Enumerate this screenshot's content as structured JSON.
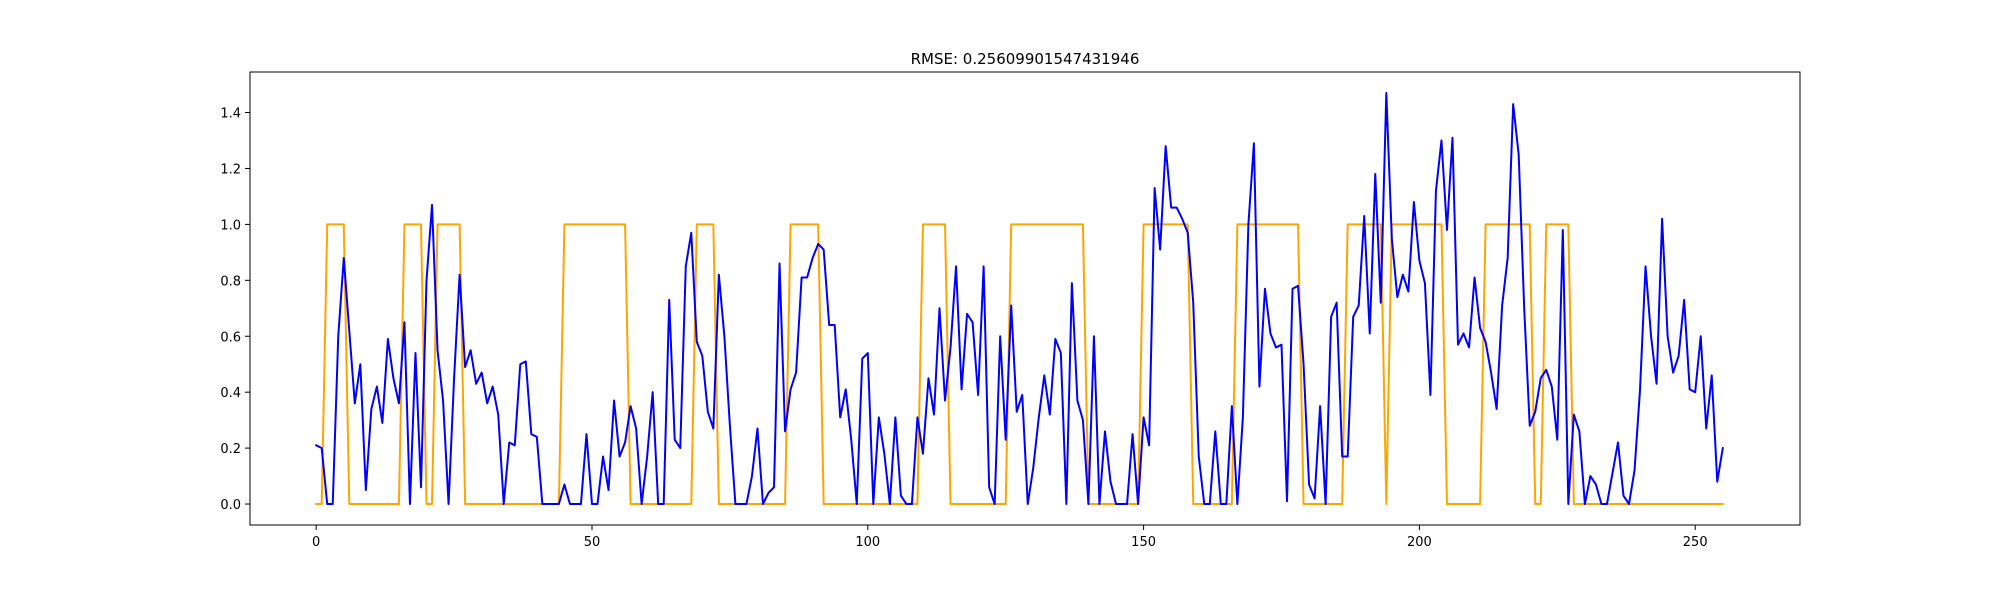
{
  "chart_data": {
    "type": "line",
    "title": "RMSE: 0.25609901547431946",
    "xlabel": "",
    "ylabel": "",
    "xlim": [
      -12,
      269
    ],
    "ylim": [
      -0.075,
      1.545
    ],
    "xticks": [
      0,
      50,
      100,
      150,
      200,
      250
    ],
    "yticks": [
      0.0,
      0.2,
      0.4,
      0.6,
      0.8,
      1.0,
      1.2,
      1.4
    ],
    "xtick_labels": [
      "0",
      "50",
      "100",
      "150",
      "200",
      "250"
    ],
    "ytick_labels": [
      "0.0",
      "0.2",
      "0.4",
      "0.6",
      "0.8",
      "1.0",
      "1.2",
      "1.4"
    ],
    "grid": false,
    "legend": "none",
    "colors": {
      "predicted": "#0000ff",
      "target": "#ffa500"
    },
    "series": [
      {
        "color": "#ffa500",
        "x": [
          0,
          1,
          2,
          5,
          6,
          15,
          16,
          19,
          20,
          21,
          22,
          26,
          27,
          44,
          45,
          56,
          57,
          68,
          69,
          72,
          73,
          85,
          86,
          91,
          92,
          109,
          110,
          114,
          115,
          125,
          126,
          139,
          140,
          149,
          150,
          158,
          159,
          166,
          167,
          178,
          179,
          186,
          187,
          193,
          194,
          195,
          204,
          205,
          211,
          212,
          220,
          221,
          222,
          223,
          227,
          228,
          255
        ],
        "y": [
          0,
          0,
          1,
          1,
          0,
          0,
          1,
          1,
          0,
          0,
          1,
          1,
          0,
          0,
          1,
          1,
          0,
          0,
          1,
          1,
          0,
          0,
          1,
          1,
          0,
          0,
          1,
          1,
          0,
          0,
          1,
          1,
          0,
          0,
          1,
          1,
          0,
          0,
          1,
          1,
          0,
          0,
          1,
          1,
          0,
          1,
          1,
          0,
          0,
          1,
          1,
          0,
          0,
          1,
          1,
          0,
          0
        ]
      },
      {
        "color": "#0000ff",
        "x": [
          0,
          1,
          2,
          3,
          4,
          5,
          6,
          7,
          8,
          9,
          10,
          11,
          12,
          13,
          14,
          15,
          16,
          17,
          18,
          19,
          20,
          21,
          22,
          23,
          24,
          25,
          26,
          27,
          28,
          29,
          30,
          31,
          32,
          33,
          34,
          35,
          36,
          37,
          38,
          39,
          40,
          41,
          42,
          43,
          44,
          45,
          46,
          47,
          48,
          49,
          50,
          51,
          52,
          53,
          54,
          55,
          56,
          57,
          58,
          59,
          60,
          61,
          62,
          63,
          64,
          65,
          66,
          67,
          68,
          69,
          70,
          71,
          72,
          73,
          74,
          75,
          76,
          77,
          78,
          79,
          80,
          81,
          82,
          83,
          84,
          85,
          86,
          87,
          88,
          89,
          90,
          91,
          92,
          93,
          94,
          95,
          96,
          97,
          98,
          99,
          100,
          101,
          102,
          103,
          104,
          105,
          106,
          107,
          108,
          109,
          110,
          111,
          112,
          113,
          114,
          115,
          116,
          117,
          118,
          119,
          120,
          121,
          122,
          123,
          124,
          125,
          126,
          127,
          128,
          129,
          130,
          131,
          132,
          133,
          134,
          135,
          136,
          137,
          138,
          139,
          140,
          141,
          142,
          143,
          144,
          145,
          146,
          147,
          148,
          149,
          150,
          151,
          152,
          153,
          154,
          155,
          156,
          157,
          158,
          159,
          160,
          161,
          162,
          163,
          164,
          165,
          166,
          167,
          168,
          169,
          170,
          171,
          172,
          173,
          174,
          175,
          176,
          177,
          178,
          179,
          180,
          181,
          182,
          183,
          184,
          185,
          186,
          187,
          188,
          189,
          190,
          191,
          192,
          193,
          194,
          195,
          196,
          197,
          198,
          199,
          200,
          201,
          202,
          203,
          204,
          205,
          206,
          207,
          208,
          209,
          210,
          211,
          212,
          213,
          214,
          215,
          216,
          217,
          218,
          219,
          220,
          221,
          222,
          223,
          224,
          225,
          226,
          227,
          228,
          229,
          230,
          231,
          232,
          233,
          234,
          235,
          236,
          237,
          238,
          239,
          240,
          241,
          242,
          243,
          244,
          245,
          246,
          247,
          248,
          249,
          250,
          251,
          252,
          253,
          254,
          255
        ],
        "y": [
          0.21,
          0.2,
          0.0,
          0.0,
          0.6,
          0.88,
          0.62,
          0.36,
          0.5,
          0.05,
          0.34,
          0.42,
          0.29,
          0.59,
          0.45,
          0.36,
          0.65,
          0.0,
          0.54,
          0.06,
          0.8,
          1.07,
          0.55,
          0.37,
          0.0,
          0.45,
          0.82,
          0.49,
          0.55,
          0.43,
          0.47,
          0.36,
          0.42,
          0.32,
          0.0,
          0.22,
          0.21,
          0.5,
          0.51,
          0.25,
          0.24,
          0.0,
          0.0,
          0.0,
          0.0,
          0.07,
          0.0,
          0.0,
          0.0,
          0.25,
          0.0,
          0.0,
          0.17,
          0.05,
          0.37,
          0.17,
          0.22,
          0.35,
          0.27,
          0.0,
          0.17,
          0.4,
          0.0,
          0.0,
          0.73,
          0.23,
          0.2,
          0.85,
          0.97,
          0.58,
          0.53,
          0.33,
          0.27,
          0.82,
          0.6,
          0.28,
          0.0,
          0.0,
          0.0,
          0.1,
          0.27,
          0.0,
          0.04,
          0.06,
          0.86,
          0.26,
          0.41,
          0.47,
          0.81,
          0.81,
          0.88,
          0.93,
          0.91,
          0.64,
          0.64,
          0.31,
          0.41,
          0.23,
          0.0,
          0.52,
          0.54,
          0.0,
          0.31,
          0.18,
          0.0,
          0.31,
          0.03,
          0.0,
          0.0,
          0.31,
          0.18,
          0.45,
          0.32,
          0.7,
          0.37,
          0.56,
          0.85,
          0.41,
          0.68,
          0.65,
          0.39,
          0.85,
          0.06,
          0.0,
          0.6,
          0.23,
          0.71,
          0.33,
          0.39,
          0.0,
          0.13,
          0.31,
          0.46,
          0.32,
          0.59,
          0.54,
          0.0,
          0.79,
          0.37,
          0.3,
          0.0,
          0.6,
          0.0,
          0.26,
          0.08,
          0.0,
          0.0,
          0.0,
          0.25,
          0.0,
          0.31,
          0.21,
          1.13,
          0.91,
          1.28,
          1.06,
          1.06,
          1.02,
          0.97,
          0.72,
          0.17,
          0.0,
          0.0,
          0.26,
          0.0,
          0.0,
          0.35,
          0.0,
          0.31,
          1.0,
          1.29,
          0.42,
          0.77,
          0.61,
          0.56,
          0.57,
          0.01,
          0.77,
          0.78,
          0.5,
          0.07,
          0.02,
          0.35,
          0.0,
          0.67,
          0.72,
          0.17,
          0.17,
          0.67,
          0.71,
          1.03,
          0.61,
          1.18,
          0.72,
          1.47,
          0.95,
          0.74,
          0.82,
          0.76,
          1.08,
          0.87,
          0.79,
          0.39,
          1.12,
          1.3,
          0.98,
          1.31,
          0.57,
          0.61,
          0.56,
          0.81,
          0.63,
          0.58,
          0.47,
          0.34,
          0.71,
          0.88,
          1.43,
          1.25,
          0.7,
          0.28,
          0.33,
          0.45,
          0.48,
          0.42,
          0.23,
          0.98,
          0.0,
          0.32,
          0.26,
          0.0,
          0.1,
          0.07,
          0.0,
          0.0,
          0.11,
          0.22,
          0.03,
          0.0,
          0.12,
          0.41,
          0.85,
          0.6,
          0.43,
          1.02,
          0.6,
          0.47,
          0.53,
          0.73,
          0.41,
          0.4,
          0.6,
          0.27,
          0.46,
          0.08,
          0.2
        ]
      }
    ]
  }
}
